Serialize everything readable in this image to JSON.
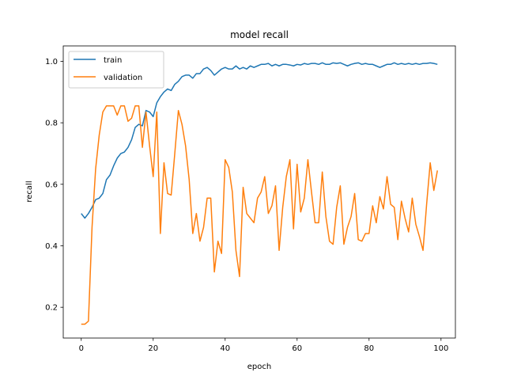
{
  "chart_data": {
    "type": "line",
    "title": "model recall",
    "xlabel": "epoch",
    "ylabel": "recall",
    "xlim": [
      -5,
      104
    ],
    "ylim": [
      0.1,
      1.05
    ],
    "xticks": [
      0,
      20,
      40,
      60,
      80,
      100
    ],
    "yticks": [
      0.2,
      0.4,
      0.6,
      0.8,
      1.0
    ],
    "xtick_labels": [
      "0",
      "20",
      "40",
      "60",
      "80",
      "100"
    ],
    "ytick_labels": [
      "0.2",
      "0.4",
      "0.6",
      "0.8",
      "1.0"
    ],
    "grid": false,
    "legend_position": "upper-left",
    "series": [
      {
        "name": "train",
        "color": "#1f77b4",
        "x": [
          0,
          1,
          2,
          3,
          4,
          5,
          6,
          7,
          8,
          9,
          10,
          11,
          12,
          13,
          14,
          15,
          16,
          17,
          18,
          19,
          20,
          21,
          22,
          23,
          24,
          25,
          26,
          27,
          28,
          29,
          30,
          31,
          32,
          33,
          34,
          35,
          36,
          37,
          38,
          39,
          40,
          41,
          42,
          43,
          44,
          45,
          46,
          47,
          48,
          49,
          50,
          51,
          52,
          53,
          54,
          55,
          56,
          57,
          58,
          59,
          60,
          61,
          62,
          63,
          64,
          65,
          66,
          67,
          68,
          69,
          70,
          71,
          72,
          73,
          74,
          75,
          76,
          77,
          78,
          79,
          80,
          81,
          82,
          83,
          84,
          85,
          86,
          87,
          88,
          89,
          90,
          91,
          92,
          93,
          94,
          95,
          96,
          97,
          98,
          99
        ],
        "values": [
          0.505,
          0.49,
          0.505,
          0.525,
          0.55,
          0.555,
          0.57,
          0.615,
          0.63,
          0.66,
          0.685,
          0.7,
          0.705,
          0.72,
          0.745,
          0.785,
          0.795,
          0.79,
          0.84,
          0.835,
          0.82,
          0.865,
          0.885,
          0.9,
          0.91,
          0.905,
          0.925,
          0.935,
          0.95,
          0.955,
          0.955,
          0.945,
          0.96,
          0.96,
          0.975,
          0.98,
          0.97,
          0.955,
          0.965,
          0.975,
          0.98,
          0.975,
          0.975,
          0.985,
          0.975,
          0.98,
          0.975,
          0.985,
          0.98,
          0.985,
          0.99,
          0.99,
          0.993,
          0.985,
          0.99,
          0.985,
          0.99,
          0.99,
          0.988,
          0.985,
          0.99,
          0.988,
          0.993,
          0.99,
          0.993,
          0.993,
          0.99,
          0.995,
          0.99,
          0.99,
          0.995,
          0.993,
          0.995,
          0.99,
          0.985,
          0.99,
          0.993,
          0.995,
          0.99,
          0.993,
          0.99,
          0.99,
          0.985,
          0.98,
          0.985,
          0.99,
          0.99,
          0.995,
          0.99,
          0.993,
          0.99,
          0.993,
          0.99,
          0.993,
          0.99,
          0.993,
          0.993,
          0.995,
          0.993,
          0.99
        ]
      },
      {
        "name": "validation",
        "color": "#ff7f0e",
        "x": [
          0,
          1,
          2,
          3,
          4,
          5,
          6,
          7,
          8,
          9,
          10,
          11,
          12,
          13,
          14,
          15,
          16,
          17,
          18,
          19,
          20,
          21,
          22,
          23,
          24,
          25,
          26,
          27,
          28,
          29,
          30,
          31,
          32,
          33,
          34,
          35,
          36,
          37,
          38,
          39,
          40,
          41,
          42,
          43,
          44,
          45,
          46,
          47,
          48,
          49,
          50,
          51,
          52,
          53,
          54,
          55,
          56,
          57,
          58,
          59,
          60,
          61,
          62,
          63,
          64,
          65,
          66,
          67,
          68,
          69,
          70,
          71,
          72,
          73,
          74,
          75,
          76,
          77,
          78,
          79,
          80,
          81,
          82,
          83,
          84,
          85,
          86,
          87,
          88,
          89,
          90,
          91,
          92,
          93,
          94,
          95,
          96,
          97,
          98,
          99
        ],
        "values": [
          0.145,
          0.145,
          0.155,
          0.46,
          0.65,
          0.76,
          0.835,
          0.855,
          0.855,
          0.855,
          0.825,
          0.855,
          0.855,
          0.805,
          0.815,
          0.855,
          0.855,
          0.72,
          0.835,
          0.725,
          0.625,
          0.835,
          0.44,
          0.67,
          0.57,
          0.565,
          0.7,
          0.84,
          0.795,
          0.725,
          0.615,
          0.44,
          0.505,
          0.415,
          0.46,
          0.555,
          0.555,
          0.315,
          0.415,
          0.375,
          0.68,
          0.655,
          0.575,
          0.385,
          0.3,
          0.59,
          0.505,
          0.49,
          0.475,
          0.555,
          0.575,
          0.625,
          0.505,
          0.53,
          0.595,
          0.385,
          0.525,
          0.625,
          0.68,
          0.455,
          0.665,
          0.51,
          0.555,
          0.68,
          0.575,
          0.475,
          0.475,
          0.64,
          0.495,
          0.415,
          0.405,
          0.525,
          0.595,
          0.405,
          0.46,
          0.495,
          0.57,
          0.42,
          0.415,
          0.44,
          0.44,
          0.53,
          0.475,
          0.56,
          0.52,
          0.625,
          0.535,
          0.525,
          0.42,
          0.545,
          0.49,
          0.445,
          0.555,
          0.47,
          0.43,
          0.385,
          0.535,
          0.67,
          0.58,
          0.645
        ]
      }
    ]
  }
}
